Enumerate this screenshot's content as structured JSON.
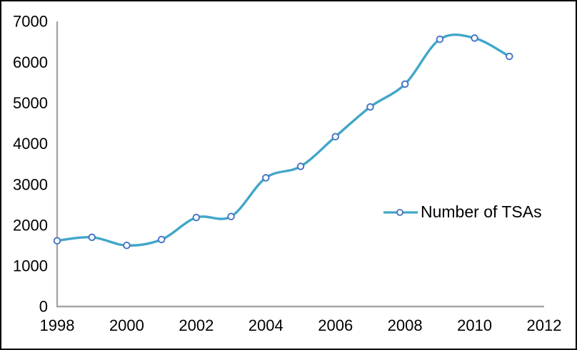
{
  "figure": {
    "legend_label": "Number of TSAs"
  },
  "chart_data": {
    "type": "line",
    "title": "",
    "xlabel": "",
    "ylabel": "",
    "x": [
      1998,
      1999,
      2000,
      2001,
      2002,
      2003,
      2004,
      2005,
      2006,
      2007,
      2008,
      2009,
      2010,
      2011
    ],
    "series": [
      {
        "name": "Number of TSAs",
        "values": [
          1615,
          1700,
          1500,
          1645,
          2185,
          2210,
          3160,
          3440,
          4170,
          4900,
          5460,
          6560,
          6590,
          6140
        ]
      }
    ],
    "xlim": [
      1998,
      2012
    ],
    "ylim": [
      0,
      7000
    ],
    "x_ticks": [
      "1998",
      "2000",
      "2002",
      "2004",
      "2006",
      "2008",
      "2010",
      "2012"
    ],
    "x_tick_years": [
      1998,
      2000,
      2002,
      2004,
      2006,
      2008,
      2010,
      2012
    ],
    "y_ticks": [
      "0",
      "1000",
      "2000",
      "3000",
      "4000",
      "5000",
      "6000",
      "7000"
    ],
    "y_tick_values": [
      0,
      1000,
      2000,
      3000,
      4000,
      5000,
      6000,
      7000
    ],
    "grid": false,
    "line_smooth": true,
    "legend_position": "middle-right",
    "colors": {
      "line": "#41a7c9",
      "marker_ring": "#4472c4",
      "marker_fill": "#ffffff",
      "axis": "#a6a6a6",
      "text": "#000000"
    }
  }
}
